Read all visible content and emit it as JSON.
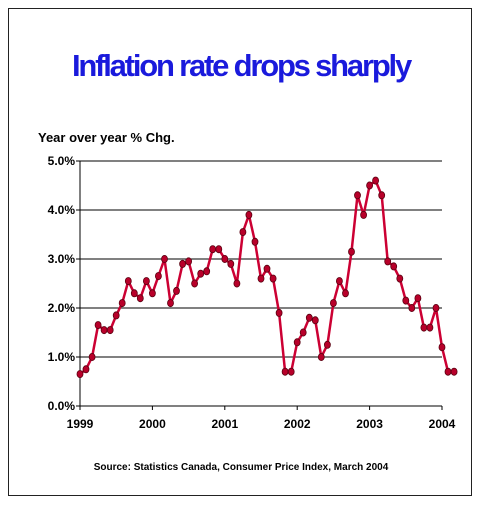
{
  "chart_data": {
    "type": "line",
    "title": "Inflation rate drops sharply",
    "ylabel": "Year over year % Chg.",
    "xlabel": "",
    "source": "Source:  Statistics Canada, Consumer Price Index, March 2004",
    "x_tick_labels": [
      "1999",
      "2000",
      "2001",
      "2002",
      "2003",
      "2004"
    ],
    "y_tick_labels": [
      "0.0%",
      "1.0%",
      "2.0%",
      "3.0%",
      "4.0%",
      "5.0%"
    ],
    "ylim": [
      0,
      5
    ],
    "grid": "horizontal",
    "series": [
      {
        "color": "#cc0033",
        "marker_color": "#b8002a",
        "x": [
          "1999-01",
          "1999-02",
          "1999-03",
          "1999-04",
          "1999-05",
          "1999-06",
          "1999-07",
          "1999-08",
          "1999-09",
          "1999-10",
          "1999-11",
          "1999-12",
          "2000-01",
          "2000-02",
          "2000-03",
          "2000-04",
          "2000-05",
          "2000-06",
          "2000-07",
          "2000-08",
          "2000-09",
          "2000-10",
          "2000-11",
          "2000-12",
          "2001-01",
          "2001-02",
          "2001-03",
          "2001-04",
          "2001-05",
          "2001-06",
          "2001-07",
          "2001-08",
          "2001-09",
          "2001-10",
          "2001-11",
          "2001-12",
          "2002-01",
          "2002-02",
          "2002-03",
          "2002-04",
          "2002-05",
          "2002-06",
          "2002-07",
          "2002-08",
          "2002-09",
          "2002-10",
          "2002-11",
          "2002-12",
          "2003-01",
          "2003-02",
          "2003-03",
          "2003-04",
          "2003-05",
          "2003-06",
          "2003-07",
          "2003-08",
          "2003-09",
          "2003-10",
          "2003-11",
          "2003-12",
          "2004-01",
          "2004-02",
          "2004-03"
        ],
        "values": [
          0.65,
          0.75,
          1.0,
          1.65,
          1.55,
          1.55,
          1.85,
          2.1,
          2.55,
          2.3,
          2.2,
          2.55,
          2.3,
          2.65,
          3.0,
          2.1,
          2.35,
          2.9,
          2.95,
          2.5,
          2.7,
          2.75,
          3.2,
          3.2,
          3.0,
          2.9,
          2.5,
          3.55,
          3.9,
          3.35,
          2.6,
          2.8,
          2.6,
          1.9,
          0.7,
          0.7,
          1.3,
          1.5,
          1.8,
          1.75,
          1.0,
          1.25,
          2.1,
          2.55,
          2.3,
          3.15,
          4.3,
          3.9,
          4.5,
          4.6,
          4.3,
          2.95,
          2.85,
          2.6,
          2.15,
          2.0,
          2.2,
          1.6,
          1.6,
          2.0,
          1.2,
          0.7,
          0.7
        ]
      }
    ]
  }
}
